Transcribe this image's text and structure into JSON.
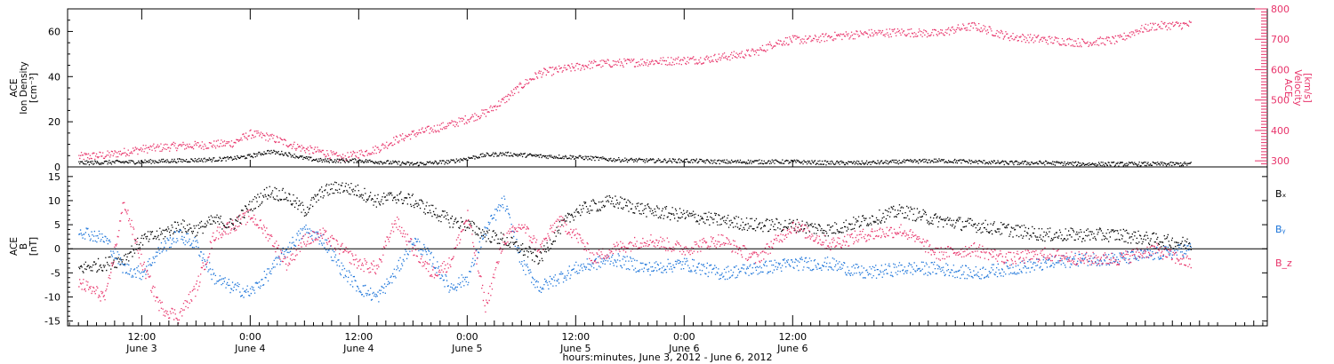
{
  "chart_data": [
    {
      "type": "scatter",
      "panel": "plasma",
      "left_axis": {
        "label_lines": [
          "ACE",
          "Ion Density",
          "[cm⁻³]"
        ],
        "ticks": [
          "0",
          "20",
          "40",
          "60"
        ],
        "tick_values": [
          0,
          20,
          40,
          60
        ],
        "ylim": [
          0,
          70
        ],
        "color": "#000000"
      },
      "right_axis": {
        "label_lines": [
          "ACE",
          "Velocity",
          "[km/s]"
        ],
        "ticks": [
          "300",
          "400",
          "500",
          "600",
          "700",
          "800"
        ],
        "tick_values": [
          300,
          400,
          500,
          600,
          700,
          800
        ],
        "ylim": [
          280,
          800
        ],
        "color": "#e8336a"
      },
      "series": [
        {
          "color": "#000000",
          "axis": "left",
          "x": [
            -7,
            0,
            4,
            8,
            10,
            12,
            14,
            16,
            18,
            20,
            24,
            30,
            32,
            34,
            36,
            38,
            40,
            44,
            48,
            50,
            52,
            56,
            60,
            64,
            68,
            72,
            76,
            80,
            84,
            88,
            92,
            96,
            100,
            104,
            108,
            110,
            112,
            116
          ],
          "y": [
            2,
            2.5,
            3,
            3.5,
            4,
            5,
            7,
            6,
            4,
            3,
            3,
            1.5,
            2,
            2.5,
            4,
            5.5,
            6,
            5,
            4.5,
            4,
            3.5,
            3,
            3,
            2.5,
            2.5,
            2.5,
            2,
            2,
            2.5,
            3,
            2.5,
            2,
            2,
            1.5,
            1.5,
            1.5,
            1.5,
            1.5
          ]
        },
        {
          "color": "#e8336a",
          "axis": "right",
          "x": [
            -7,
            -4,
            0,
            2,
            4,
            8,
            10,
            12,
            14,
            16,
            18,
            20,
            22,
            24,
            26,
            28,
            30,
            32,
            34,
            36,
            38,
            40,
            42,
            44,
            46,
            48,
            50,
            54,
            58,
            62,
            66,
            68,
            70,
            72,
            74,
            76,
            80,
            84,
            88,
            90,
            92,
            96,
            100,
            104,
            108,
            110,
            112,
            116
          ],
          "y": [
            315,
            320,
            340,
            345,
            350,
            355,
            360,
            390,
            380,
            360,
            340,
            330,
            310,
            325,
            340,
            370,
            390,
            405,
            420,
            440,
            460,
            500,
            550,
            590,
            600,
            610,
            620,
            625,
            630,
            635,
            650,
            660,
            690,
            700,
            700,
            710,
            720,
            725,
            720,
            735,
            745,
            710,
            700,
            690,
            700,
            730,
            745,
            750
          ]
        }
      ]
    },
    {
      "type": "scatter",
      "panel": "magnetic",
      "left_axis": {
        "label_lines": [
          "ACE",
          "B",
          "[nT]"
        ],
        "ticks": [
          "-15",
          "-10",
          "-5",
          "0",
          "5",
          "10",
          "15"
        ],
        "tick_values": [
          -15,
          -10,
          -5,
          0,
          5,
          10,
          15
        ],
        "ylim": [
          -16,
          17
        ],
        "zero_line": true
      },
      "legend": [
        "Bₓ",
        "Bᵧ",
        "B_z"
      ],
      "series": [
        {
          "name": "Bₓ",
          "color": "#000000",
          "x": [
            -7,
            -4,
            -2,
            0,
            2,
            4,
            6,
            8,
            10,
            12,
            14,
            16,
            18,
            20,
            22,
            24,
            26,
            28,
            30,
            32,
            34,
            36,
            38,
            40,
            42,
            44,
            46,
            48,
            50,
            52,
            56,
            60,
            64,
            68,
            72,
            76,
            80,
            84,
            88,
            92,
            96,
            100,
            104,
            108,
            112,
            116
          ],
          "y": [
            -4,
            -3,
            -2,
            2,
            3,
            5,
            4,
            6,
            5,
            9,
            12,
            11,
            8,
            12,
            13,
            12,
            10,
            11,
            10,
            8,
            6,
            5,
            3,
            2,
            0,
            -2,
            4,
            8,
            9,
            10,
            8,
            7,
            6,
            5,
            5,
            4,
            6,
            8,
            6,
            5,
            4,
            3,
            3,
            3,
            2,
            1
          ]
        },
        {
          "name": "Bᵧ",
          "color": "#1a73d9",
          "x": [
            -7,
            -4,
            -2,
            0,
            2,
            4,
            6,
            8,
            10,
            12,
            14,
            16,
            18,
            20,
            22,
            24,
            26,
            28,
            30,
            32,
            34,
            36,
            38,
            40,
            42,
            44,
            46,
            48,
            50,
            52,
            56,
            60,
            64,
            68,
            72,
            76,
            80,
            84,
            88,
            92,
            96,
            100,
            104,
            108,
            112,
            116
          ],
          "y": [
            4,
            2,
            -4,
            -5,
            0,
            3,
            1,
            -6,
            -8,
            -9,
            -5,
            0,
            4,
            2,
            -4,
            -8,
            -10,
            -5,
            2,
            -2,
            -8,
            -6,
            4,
            10,
            -3,
            -8,
            -6,
            -4,
            -3,
            -2,
            -4,
            -3,
            -5,
            -4,
            -3,
            -3,
            -5,
            -4,
            -4,
            -5,
            -4,
            -3,
            -2,
            -2,
            -1,
            0
          ]
        },
        {
          "name": "B_z",
          "color": "#e8336a",
          "x": [
            -7,
            -4,
            -2,
            0,
            2,
            4,
            6,
            8,
            10,
            12,
            14,
            16,
            18,
            20,
            22,
            24,
            26,
            28,
            30,
            32,
            34,
            36,
            38,
            40,
            42,
            44,
            46,
            48,
            50,
            52,
            56,
            60,
            64,
            68,
            72,
            76,
            80,
            84,
            88,
            92,
            96,
            100,
            104,
            108,
            112,
            116
          ],
          "y": [
            -7,
            -10,
            10,
            -3,
            -12,
            -14,
            -8,
            3,
            5,
            7,
            3,
            -3,
            2,
            3,
            0,
            -3,
            -4,
            6,
            0,
            -5,
            -3,
            7,
            -12,
            2,
            5,
            0,
            6,
            3,
            -2,
            0,
            2,
            0,
            2,
            -2,
            5,
            1,
            3,
            4,
            -1,
            0,
            -2,
            -1,
            -2,
            -2,
            0,
            -3
          ]
        }
      ]
    }
  ],
  "x_axis": {
    "xlim": [
      -8.2,
      124.5
    ],
    "major_ticks": [
      {
        "x": 0,
        "time": "12:00",
        "date": "June 3"
      },
      {
        "x": 12,
        "time": "0:00",
        "date": "June 4"
      },
      {
        "x": 24,
        "time": "12:00",
        "date": "June 4"
      },
      {
        "x": 36,
        "time": "0:00",
        "date": "June 5"
      },
      {
        "x": 48,
        "time": "12:00",
        "date": "June 5"
      },
      {
        "x": 60,
        "time": "0:00",
        "date": "June 6"
      },
      {
        "x": 72,
        "time": "12:00",
        "date": "June 6"
      }
    ],
    "label": "hours:minutes, June  3, 2012 - June  6, 2012"
  }
}
